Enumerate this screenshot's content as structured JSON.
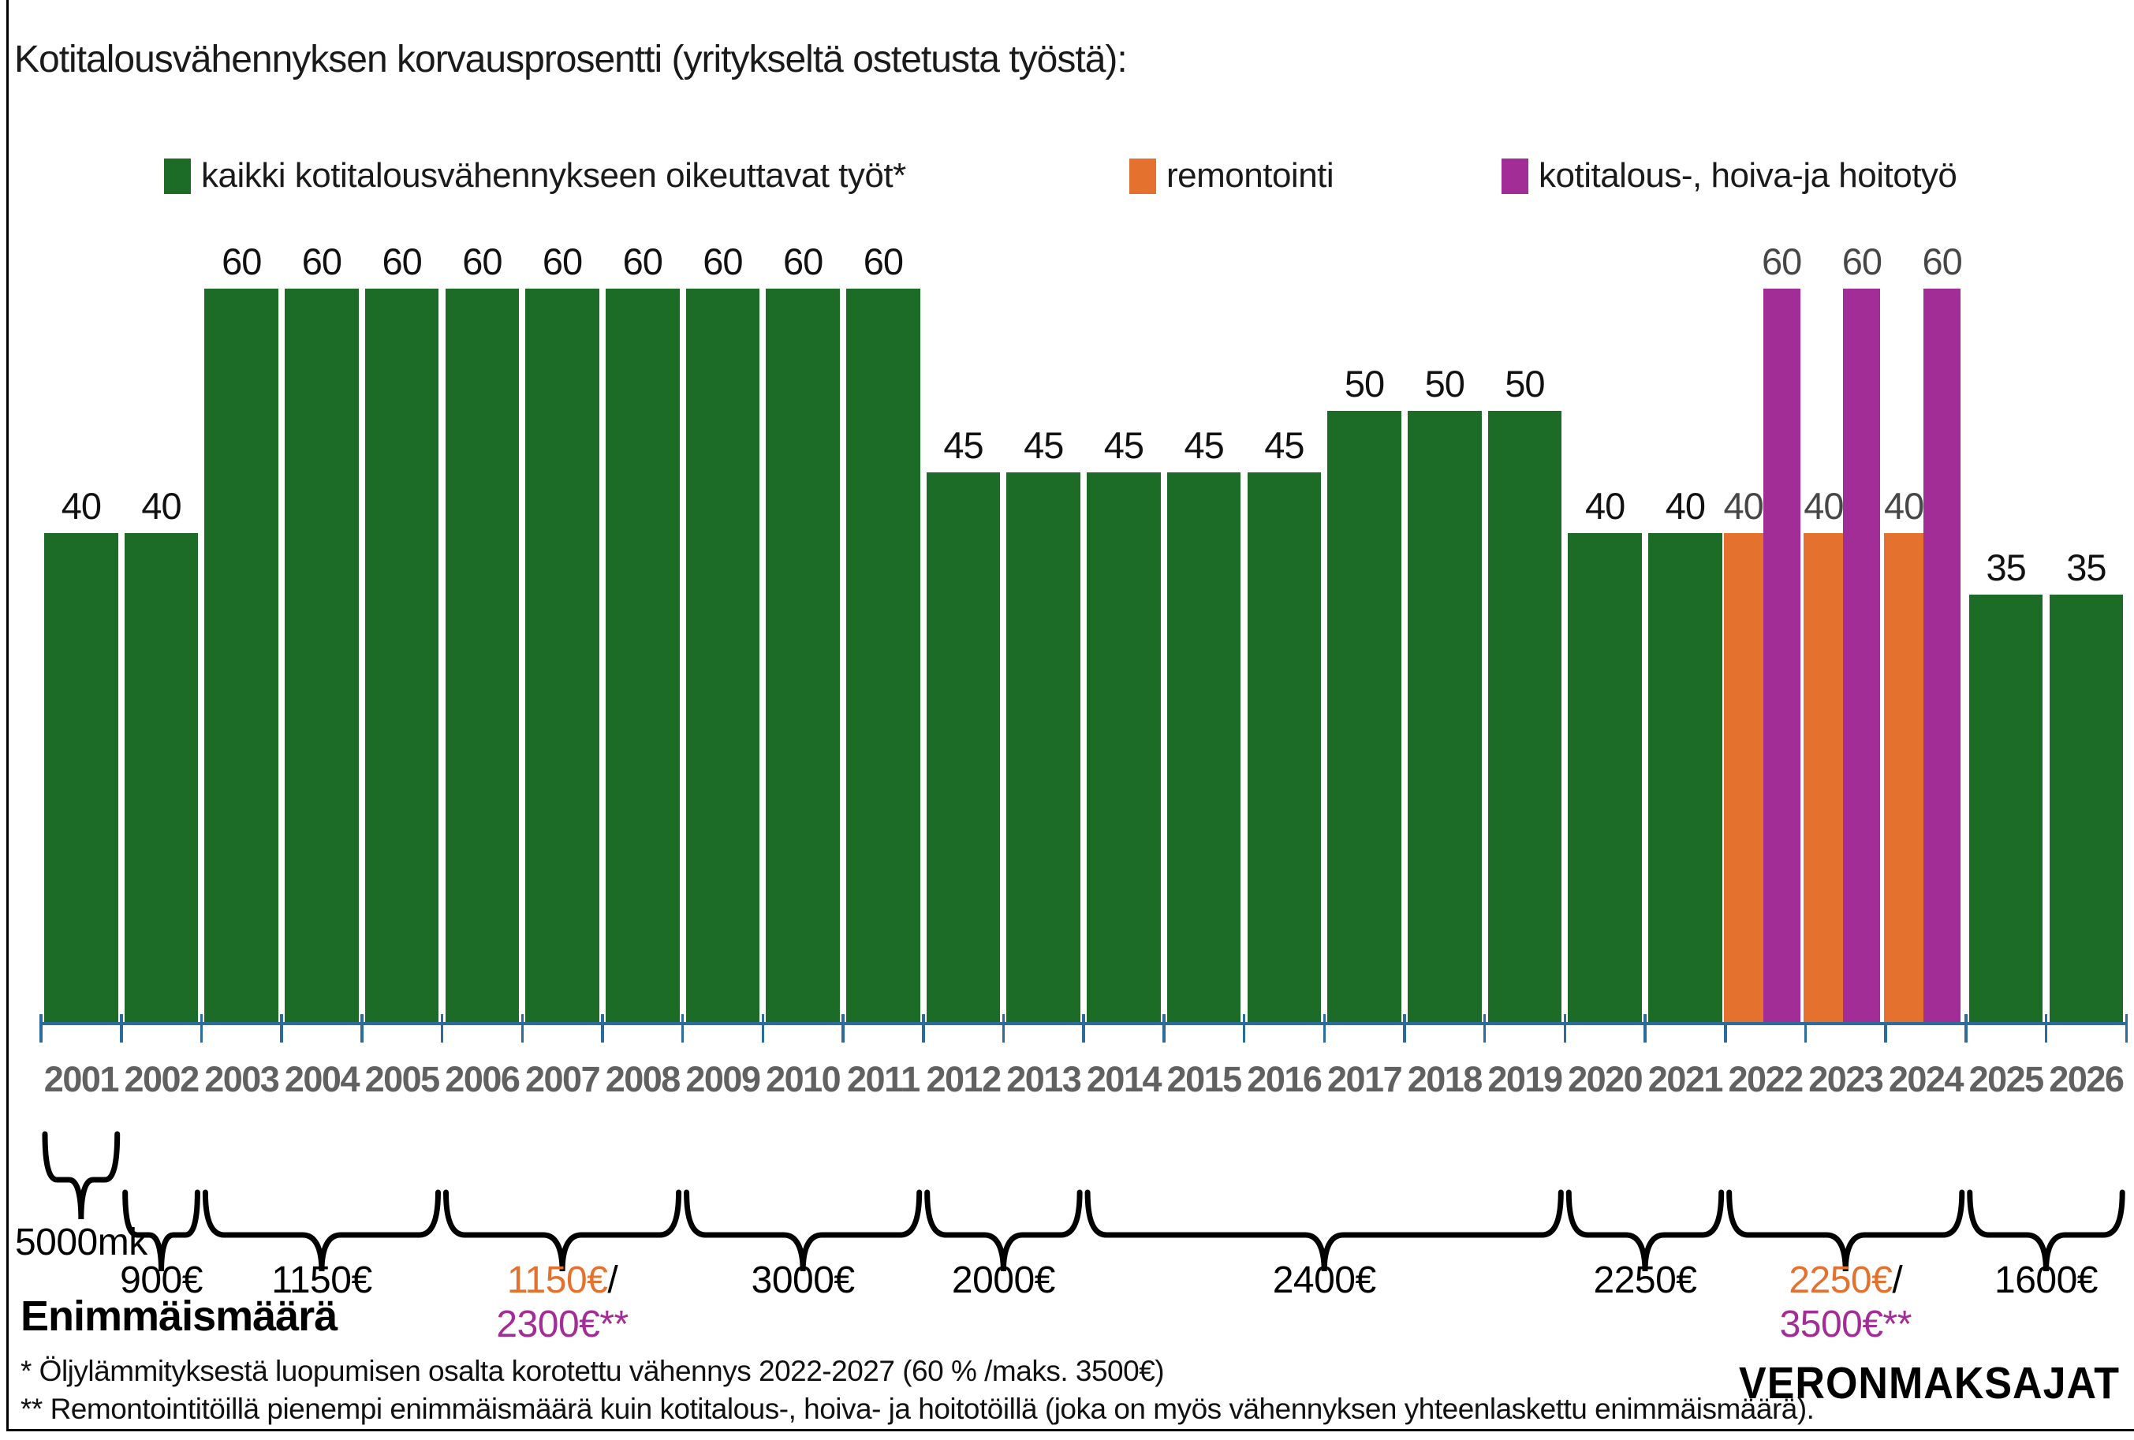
{
  "title": "Kotitalousvähennyksen korvausprosentti (yritykseltä ostetusta työstä):",
  "legend": {
    "items": [
      {
        "label": "kaikki kotitalousvähennykseen oikeuttavat työt*",
        "color": "#1c6c28",
        "x": 208
      },
      {
        "label": "remontointi",
        "color": "#e4722e",
        "x": 1432
      },
      {
        "label": "kotitalous-, hoiva-ja hoitotyö",
        "color": "#a32d96",
        "x": 1904
      }
    ]
  },
  "chart_data": {
    "type": "bar",
    "title": "Kotitalousvähennyksen korvausprosentti (yritykseltä ostetusta työstä)",
    "categories": [
      "2001",
      "2002",
      "2003",
      "2004",
      "2005",
      "2006",
      "2007",
      "2008",
      "2009",
      "2010",
      "2011",
      "2012",
      "2013",
      "2014",
      "2015",
      "2016",
      "2017",
      "2018",
      "2019",
      "2020",
      "2021",
      "2022",
      "2023",
      "2024",
      "2025",
      "2026"
    ],
    "series": [
      {
        "name": "kaikki kotitalousvähennykseen oikeuttavat työt*",
        "color": "#1c6c28",
        "label_color": "#111111",
        "values": [
          40,
          40,
          60,
          60,
          60,
          60,
          60,
          60,
          60,
          60,
          60,
          45,
          45,
          45,
          45,
          45,
          50,
          50,
          50,
          40,
          40,
          null,
          null,
          null,
          35,
          35
        ]
      },
      {
        "name": "remontointi",
        "color": "#e4722e",
        "label_color": "#474747",
        "values": [
          null,
          null,
          null,
          null,
          null,
          null,
          null,
          null,
          null,
          null,
          null,
          null,
          null,
          null,
          null,
          null,
          null,
          null,
          null,
          null,
          null,
          40,
          40,
          40,
          null,
          null
        ]
      },
      {
        "name": "kotitalous-, hoiva-ja hoitotyö",
        "color": "#a32d96",
        "label_color": "#474747",
        "values": [
          null,
          null,
          null,
          null,
          null,
          null,
          null,
          null,
          null,
          null,
          null,
          null,
          null,
          null,
          null,
          null,
          null,
          null,
          null,
          null,
          null,
          60,
          60,
          60,
          null,
          null
        ]
      }
    ],
    "ylim": [
      0,
      60
    ],
    "value_labels_shown": true,
    "grid": false,
    "axis_color": "#2b6c9c",
    "year_label_color": "#616161"
  },
  "maxima": {
    "heading": "Enimmäismäärä",
    "groups": [
      {
        "from": "2001",
        "to": "2001",
        "row": 1,
        "parts": [
          {
            "text": "5000mk",
            "color": "#000000"
          }
        ]
      },
      {
        "from": "2002",
        "to": "2002",
        "row": 2,
        "parts": [
          {
            "text": "900€",
            "color": "#000000"
          }
        ]
      },
      {
        "from": "2003",
        "to": "2005",
        "row": 2,
        "parts": [
          {
            "text": "1150€",
            "color": "#000000"
          }
        ]
      },
      {
        "from": "2006",
        "to": "2008",
        "row": 2,
        "parts": [
          {
            "text": "1150€",
            "color": "#e4722e"
          },
          {
            "text": "/",
            "color": "#000000"
          }
        ],
        "parts2": [
          {
            "text": "2300€**",
            "color": "#a32d96"
          }
        ]
      },
      {
        "from": "2009",
        "to": "2011",
        "row": 2,
        "parts": [
          {
            "text": "3000€",
            "color": "#000000"
          }
        ]
      },
      {
        "from": "2012",
        "to": "2013",
        "row": 2,
        "parts": [
          {
            "text": "2000€",
            "color": "#000000"
          }
        ]
      },
      {
        "from": "2014",
        "to": "2019",
        "row": 2,
        "parts": [
          {
            "text": "2400€",
            "color": "#000000"
          }
        ]
      },
      {
        "from": "2020",
        "to": "2021",
        "row": 2,
        "parts": [
          {
            "text": "2250€",
            "color": "#000000"
          }
        ]
      },
      {
        "from": "2022",
        "to": "2024",
        "row": 2,
        "parts": [
          {
            "text": "2250€",
            "color": "#e4722e"
          },
          {
            "text": "/",
            "color": "#000000"
          }
        ],
        "parts2": [
          {
            "text": "3500€**",
            "color": "#a32d96"
          }
        ]
      },
      {
        "from": "2025",
        "to": "2026",
        "row": 2,
        "parts": [
          {
            "text": "1600€",
            "color": "#000000"
          }
        ]
      }
    ]
  },
  "footnotes": [
    "* Öljylämmityksestä luopumisen osalta korotettu vähennys 2022-2027 (60 % /maks. 3500€)",
    "** Remontointitöillä pienempi enimmäismäärä kuin kotitalous-, hoiva- ja hoitotöillä (joka on myös vähennyksen yhteenlaskettu enimmäismäärä)."
  ],
  "logo": "VERONMAKSAJAT"
}
